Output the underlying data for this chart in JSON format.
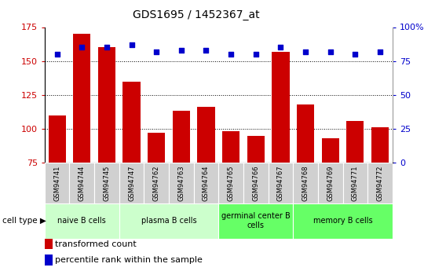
{
  "title": "GDS1695 / 1452367_at",
  "samples": [
    "GSM94741",
    "GSM94744",
    "GSM94745",
    "GSM94747",
    "GSM94762",
    "GSM94763",
    "GSM94764",
    "GSM94765",
    "GSM94766",
    "GSM94767",
    "GSM94768",
    "GSM94769",
    "GSM94771",
    "GSM94772"
  ],
  "transformed_count": [
    110,
    170,
    160,
    135,
    97,
    113,
    116,
    98,
    95,
    157,
    118,
    93,
    106,
    101
  ],
  "percentile_rank": [
    80,
    85,
    85,
    87,
    82,
    83,
    83,
    80,
    80,
    85,
    82,
    82,
    80,
    82
  ],
  "cell_types": [
    {
      "label": "naive B cells",
      "start": 0,
      "end": 3,
      "color": "#ccffcc"
    },
    {
      "label": "plasma B cells",
      "start": 3,
      "end": 7,
      "color": "#ccffcc"
    },
    {
      "label": "germinal center B\ncells",
      "start": 7,
      "end": 10,
      "color": "#66ff66"
    },
    {
      "label": "memory B cells",
      "start": 10,
      "end": 14,
      "color": "#66ff66"
    }
  ],
  "bar_color": "#cc0000",
  "dot_color": "#0000cc",
  "ylim_left": [
    75,
    175
  ],
  "ylim_right": [
    0,
    100
  ],
  "yticks_left": [
    75,
    100,
    125,
    150,
    175
  ],
  "yticks_right": [
    0,
    25,
    50,
    75,
    100
  ],
  "grid_values": [
    100,
    125,
    150
  ],
  "ylabel_left_color": "#cc0000",
  "ylabel_right_color": "#0000cc",
  "background_color": "#ffffff",
  "cell_type_label": "cell type",
  "legend_bar_label": "transformed count",
  "legend_dot_label": "percentile rank within the sample",
  "sample_bg_color": "#d0d0d0",
  "sample_border_color": "#ffffff"
}
